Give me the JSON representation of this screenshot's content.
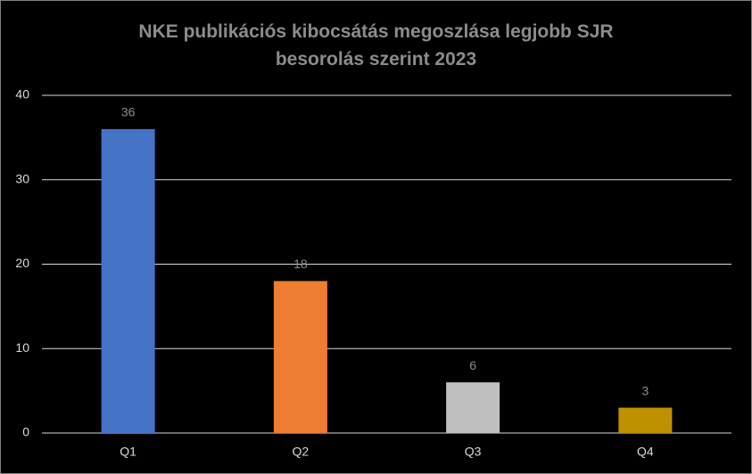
{
  "chart_data": {
    "type": "bar",
    "title": "NKE publikációs kibocsátás megoszlása legjobb SJR besorolás szerint 2023",
    "categories": [
      "Q1",
      "Q2",
      "Q3",
      "Q4"
    ],
    "values": [
      36,
      18,
      6,
      3
    ],
    "colors": [
      "#4472c4",
      "#ed7d31",
      "#bfbfbf",
      "#bf9000"
    ],
    "ylim": [
      0,
      40
    ],
    "yticks": [
      0,
      10,
      20,
      30,
      40
    ],
    "grid": true
  }
}
